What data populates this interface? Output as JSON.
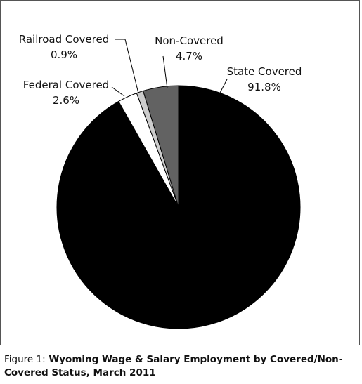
{
  "chart_data": {
    "type": "pie",
    "slices": [
      {
        "label": "State Covered",
        "value": 91.8,
        "value_label": "91.8%",
        "color": "#000000"
      },
      {
        "label": "Federal Covered",
        "value": 2.6,
        "value_label": "2.6%",
        "color": "#ffffff"
      },
      {
        "label": "Railroad Covered",
        "value": 0.9,
        "value_label": "0.9%",
        "color": "#cccccc"
      },
      {
        "label": "Non-Covered",
        "value": 4.7,
        "value_label": "4.7%",
        "color": "#626262"
      }
    ]
  },
  "caption": {
    "prefix": "Figure 1:",
    "text": " Wyoming Wage & Salary Employment by Covered/Non-Covered Status, March 2011"
  }
}
